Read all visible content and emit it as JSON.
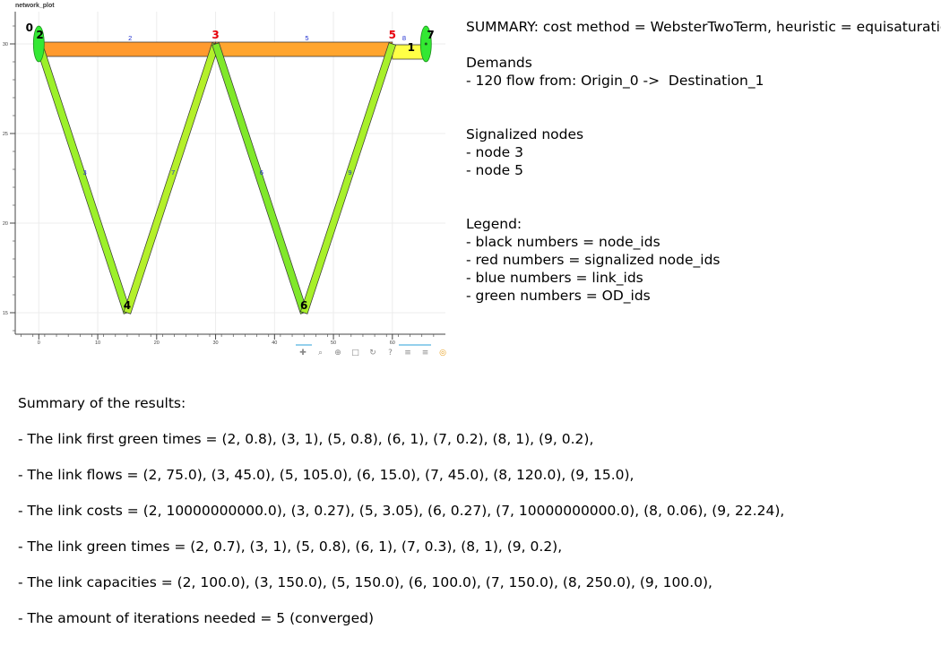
{
  "plot": {
    "title": "network_plot",
    "x_ticks": [
      "0",
      "10",
      "20",
      "30",
      "40",
      "50",
      "60"
    ],
    "y_ticks": [
      "30",
      "25",
      "20",
      "15"
    ],
    "xlim": [
      -4,
      69
    ],
    "ylim": [
      13.8,
      31.8
    ]
  },
  "network": {
    "nodes": [
      {
        "id": "0",
        "x": -1.6,
        "y": 30.7,
        "color": "#000000",
        "type": "origin"
      },
      {
        "id": "2",
        "x": 0.2,
        "y": 30.3,
        "color": "#000000"
      },
      {
        "id": "3",
        "x": 30,
        "y": 30.3,
        "color": "#e8000b"
      },
      {
        "id": "4",
        "x": 15,
        "y": 15.2,
        "color": "#000000"
      },
      {
        "id": "5",
        "x": 60,
        "y": 30.3,
        "color": "#e8000b"
      },
      {
        "id": "6",
        "x": 45,
        "y": 15.2,
        "color": "#000000"
      },
      {
        "id": "1",
        "x": 63.2,
        "y": 29.6,
        "color": "#000000",
        "type": "destination"
      },
      {
        "id": "7",
        "x": 66.5,
        "y": 30.3,
        "color": "#000000"
      }
    ],
    "od_ids": [
      "0",
      "1"
    ],
    "links": [
      {
        "id": "2",
        "from": [
          0,
          29.7
        ],
        "to": [
          30,
          29.7
        ],
        "color": "#ff9a2e",
        "label_pos": [
          15.5,
          30.2
        ]
      },
      {
        "id": "5",
        "from": [
          30,
          29.7
        ],
        "to": [
          60,
          29.7
        ],
        "color": "#ffa52e",
        "label_pos": [
          45.5,
          30.2
        ]
      },
      {
        "id": "8",
        "from": [
          60,
          29.55
        ],
        "to": [
          65.5,
          29.55
        ],
        "color": "#ffff46",
        "label_pos": [
          62,
          30.2
        ]
      },
      {
        "id": "3",
        "from": [
          0,
          30
        ],
        "to": [
          15,
          15
        ],
        "color": "#9cf02a",
        "label_pos": [
          7.8,
          22.7
        ]
      },
      {
        "id": "7",
        "from": [
          15,
          15
        ],
        "to": [
          30,
          30
        ],
        "color": "#b4f02a",
        "label_pos": [
          22.8,
          22.7
        ]
      },
      {
        "id": "6",
        "from": [
          30,
          30
        ],
        "to": [
          45,
          15
        ],
        "color": "#80e82a",
        "label_pos": [
          37.8,
          22.7
        ]
      },
      {
        "id": "9",
        "from": [
          45,
          15
        ],
        "to": [
          60,
          30
        ],
        "color": "#a8f02a",
        "label_pos": [
          52.8,
          22.7
        ]
      }
    ]
  },
  "summary": {
    "lines": [
      "SUMMARY: cost method = WebsterTwoTerm, heuristic = equisaturation",
      "",
      "Demands",
      "- 120 flow from: Origin_0 ->  Destination_1",
      "",
      "",
      "Signalized nodes",
      "- node 3",
      "- node 5",
      "",
      "",
      "Legend:",
      "- black numbers = node_ids",
      "- red numbers = signalized node_ids",
      "- blue numbers = link_ids",
      "- green numbers = OD_ids"
    ]
  },
  "results": {
    "title": "Summary of the results:",
    "lines": [
      "- The link first green times = (2, 0.8), (3, 1), (5, 0.8), (6, 1), (7, 0.2), (8, 1), (9, 0.2),",
      "- The link flows = (2, 75.0), (3, 45.0), (5, 105.0), (6, 15.0), (7, 45.0), (8, 120.0), (9, 15.0),",
      "- The link costs = (2, 10000000000.0), (3, 0.27), (5, 3.05), (6, 0.27), (7, 10000000000.0), (8, 0.06), (9, 22.24),",
      "- The link green times = (2, 0.7), (3, 1), (5, 0.8), (6, 1), (7, 0.3), (8, 1), (9, 0.2),",
      "- The link capacities = (2, 100.0), (3, 150.0), (5, 150.0), (6, 100.0), (7, 150.0), (8, 250.0), (9, 100.0),",
      "- The amount of iterations needed = 5 (converged)"
    ]
  },
  "toolbar": {
    "icons": [
      "pan-icon",
      "box-zoom-icon",
      "wheel-zoom-icon",
      "save-icon",
      "reset-icon",
      "help-icon",
      "hover-icon",
      "hover-icon-2",
      "bokeh-logo-icon"
    ]
  },
  "colors": {
    "link_label": "#1f2fd0",
    "node_black": "#000000",
    "node_red": "#e8000b",
    "od_ellipse": "#33e833",
    "grid": "#ececec"
  }
}
